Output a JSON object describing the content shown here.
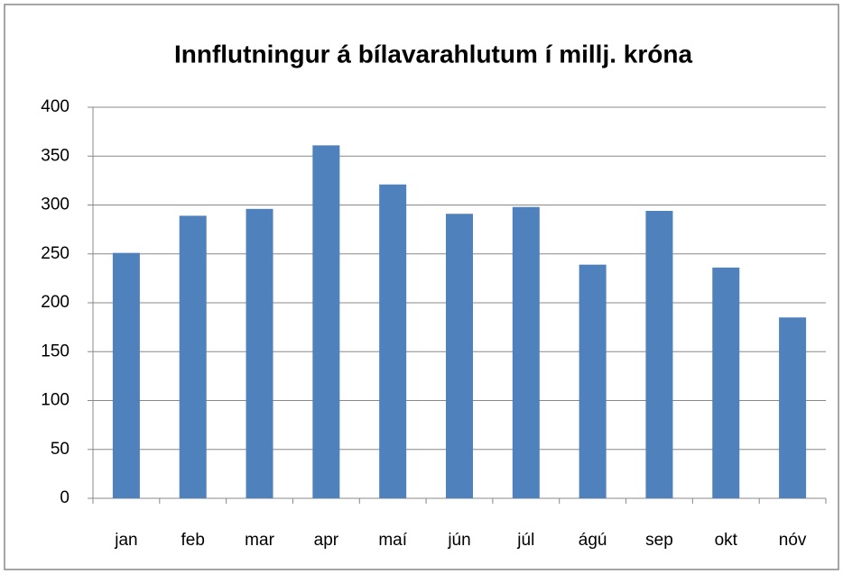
{
  "chart_data": {
    "type": "bar",
    "title": "Innflutningur á bílavarahlutum í millj. króna",
    "categories": [
      "jan",
      "feb",
      "mar",
      "apr",
      "maí",
      "jún",
      "júl",
      "ágú",
      "sep",
      "okt",
      "nóv"
    ],
    "values": [
      251,
      289,
      296,
      361,
      321,
      291,
      298,
      239,
      294,
      236,
      185
    ],
    "color": "#4f81bd",
    "ylim": [
      0,
      400
    ],
    "yticks": [
      0,
      50,
      100,
      150,
      200,
      250,
      300,
      350,
      400
    ],
    "grid": true
  }
}
